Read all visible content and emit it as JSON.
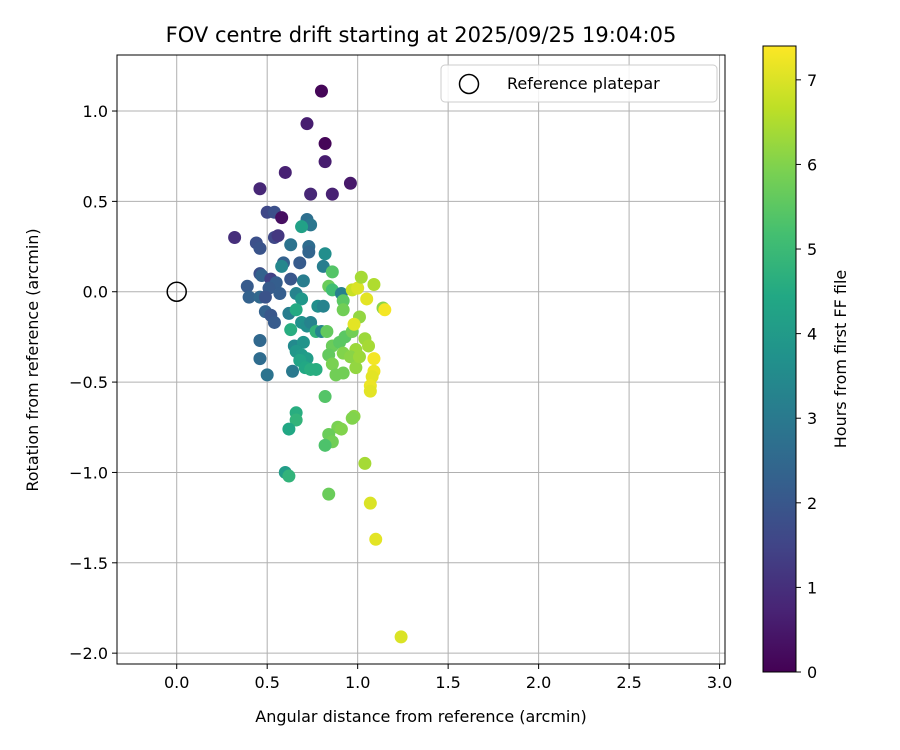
{
  "chart_data": {
    "type": "scatter",
    "title": "FOV centre drift starting at 2025/09/25 19:04:05",
    "xlabel": "Angular distance from reference (arcmin)",
    "ylabel": "Rotation from reference (arcmin)",
    "xlim": [
      -0.33,
      3.03
    ],
    "ylim": [
      -2.06,
      1.31
    ],
    "xticks": [
      0.0,
      0.5,
      1.0,
      1.5,
      2.0,
      2.5,
      3.0
    ],
    "xtick_labels": [
      "0.0",
      "0.5",
      "1.0",
      "1.5",
      "2.0",
      "2.5",
      "3.0"
    ],
    "yticks": [
      1.0,
      0.5,
      0.0,
      -0.5,
      -1.0,
      -1.5,
      -2.0
    ],
    "ytick_labels": [
      "1.0",
      "0.5",
      "0.0",
      "−0.5",
      "−1.0",
      "−1.5",
      "−2.0"
    ],
    "grid": true,
    "legend": {
      "placement": "top-right",
      "entries": [
        "Reference platepar"
      ]
    },
    "reference_point": {
      "x": 0.0,
      "y": 0.0,
      "label": "Reference platepar"
    },
    "colorbar": {
      "label": "Hours from first FF file",
      "range": [
        0,
        7.4
      ],
      "ticks": [
        0,
        1,
        2,
        3,
        4,
        5,
        6,
        7
      ],
      "tick_labels": [
        "0",
        "1",
        "2",
        "3",
        "4",
        "5",
        "6",
        "7"
      ],
      "colormap": "viridis"
    },
    "points": [
      {
        "x": 0.8,
        "y": 1.11,
        "h": 0.1
      },
      {
        "x": 0.72,
        "y": 0.93,
        "h": 0.6
      },
      {
        "x": 0.82,
        "y": 0.82,
        "h": 0.1
      },
      {
        "x": 0.82,
        "y": 0.72,
        "h": 0.6
      },
      {
        "x": 0.6,
        "y": 0.66,
        "h": 0.7
      },
      {
        "x": 0.96,
        "y": 0.6,
        "h": 0.5
      },
      {
        "x": 0.46,
        "y": 0.57,
        "h": 0.8
      },
      {
        "x": 0.74,
        "y": 0.54,
        "h": 0.8
      },
      {
        "x": 0.86,
        "y": 0.54,
        "h": 0.7
      },
      {
        "x": 0.5,
        "y": 0.44,
        "h": 1.6
      },
      {
        "x": 0.54,
        "y": 0.44,
        "h": 1.8
      },
      {
        "x": 0.58,
        "y": 0.41,
        "h": 0.3
      },
      {
        "x": 0.72,
        "y": 0.4,
        "h": 2.7
      },
      {
        "x": 0.74,
        "y": 0.37,
        "h": 2.9
      },
      {
        "x": 0.69,
        "y": 0.36,
        "h": 4.2
      },
      {
        "x": 0.32,
        "y": 0.3,
        "h": 1.0
      },
      {
        "x": 0.54,
        "y": 0.3,
        "h": 1.6
      },
      {
        "x": 0.56,
        "y": 0.31,
        "h": 1.2
      },
      {
        "x": 0.44,
        "y": 0.27,
        "h": 1.8
      },
      {
        "x": 0.46,
        "y": 0.24,
        "h": 1.9
      },
      {
        "x": 0.63,
        "y": 0.26,
        "h": 2.8
      },
      {
        "x": 0.73,
        "y": 0.25,
        "h": 2.6
      },
      {
        "x": 0.73,
        "y": 0.22,
        "h": 2.4
      },
      {
        "x": 0.82,
        "y": 0.21,
        "h": 3.6
      },
      {
        "x": 0.59,
        "y": 0.16,
        "h": 2.3
      },
      {
        "x": 0.58,
        "y": 0.14,
        "h": 3.4
      },
      {
        "x": 0.68,
        "y": 0.16,
        "h": 2.1
      },
      {
        "x": 0.81,
        "y": 0.14,
        "h": 3.1
      },
      {
        "x": 0.86,
        "y": 0.11,
        "h": 5.4
      },
      {
        "x": 0.46,
        "y": 0.1,
        "h": 1.8
      },
      {
        "x": 0.47,
        "y": 0.09,
        "h": 2.3
      },
      {
        "x": 0.52,
        "y": 0.07,
        "h": 1.4
      },
      {
        "x": 0.55,
        "y": 0.05,
        "h": 2.2
      },
      {
        "x": 0.63,
        "y": 0.07,
        "h": 2.0
      },
      {
        "x": 0.7,
        "y": 0.06,
        "h": 3.1
      },
      {
        "x": 0.39,
        "y": 0.03,
        "h": 2.1
      },
      {
        "x": 0.51,
        "y": 0.02,
        "h": 2.1
      },
      {
        "x": 0.84,
        "y": 0.03,
        "h": 5.7
      },
      {
        "x": 0.86,
        "y": 0.01,
        "h": 5.1
      },
      {
        "x": 0.91,
        "y": -0.01,
        "h": 3.2
      },
      {
        "x": 0.97,
        "y": 0.01,
        "h": 6.8
      },
      {
        "x": 1.0,
        "y": 0.02,
        "h": 7.0
      },
      {
        "x": 1.02,
        "y": 0.08,
        "h": 6.4
      },
      {
        "x": 1.09,
        "y": 0.04,
        "h": 6.5
      },
      {
        "x": 1.05,
        "y": -0.04,
        "h": 7.1
      },
      {
        "x": 0.4,
        "y": -0.03,
        "h": 2.3
      },
      {
        "x": 0.46,
        "y": -0.03,
        "h": 2.5
      },
      {
        "x": 0.49,
        "y": -0.03,
        "h": 1.9
      },
      {
        "x": 0.57,
        "y": -0.01,
        "h": 2.2
      },
      {
        "x": 0.66,
        "y": -0.01,
        "h": 3.3
      },
      {
        "x": 0.69,
        "y": -0.04,
        "h": 3.9
      },
      {
        "x": 0.78,
        "y": -0.08,
        "h": 3.6
      },
      {
        "x": 0.81,
        "y": -0.08,
        "h": 3.3
      },
      {
        "x": 0.92,
        "y": -0.05,
        "h": 5.5
      },
      {
        "x": 0.92,
        "y": -0.1,
        "h": 5.8
      },
      {
        "x": 0.49,
        "y": -0.11,
        "h": 2.3
      },
      {
        "x": 0.52,
        "y": -0.13,
        "h": 2.0
      },
      {
        "x": 0.54,
        "y": -0.17,
        "h": 2.1
      },
      {
        "x": 0.62,
        "y": -0.12,
        "h": 3.1
      },
      {
        "x": 0.66,
        "y": -0.1,
        "h": 4.5
      },
      {
        "x": 0.69,
        "y": -0.17,
        "h": 3.7
      },
      {
        "x": 0.72,
        "y": -0.19,
        "h": 3.6
      },
      {
        "x": 0.74,
        "y": -0.17,
        "h": 3.3
      },
      {
        "x": 0.77,
        "y": -0.22,
        "h": 4.8
      },
      {
        "x": 0.8,
        "y": -0.22,
        "h": 3.4
      },
      {
        "x": 0.83,
        "y": -0.22,
        "h": 5.6
      },
      {
        "x": 0.86,
        "y": -0.3,
        "h": 5.7
      },
      {
        "x": 0.9,
        "y": -0.28,
        "h": 5.5
      },
      {
        "x": 0.93,
        "y": -0.25,
        "h": 5.5
      },
      {
        "x": 0.97,
        "y": -0.22,
        "h": 5.8
      },
      {
        "x": 1.01,
        "y": -0.14,
        "h": 6.2
      },
      {
        "x": 1.04,
        "y": -0.26,
        "h": 6.3
      },
      {
        "x": 1.06,
        "y": -0.3,
        "h": 6.4
      },
      {
        "x": 0.99,
        "y": -0.32,
        "h": 6.3
      },
      {
        "x": 0.98,
        "y": -0.18,
        "h": 7.1
      },
      {
        "x": 1.14,
        "y": -0.09,
        "h": 6.1
      },
      {
        "x": 1.15,
        "y": -0.1,
        "h": 7.3
      },
      {
        "x": 0.63,
        "y": -0.21,
        "h": 4.6
      },
      {
        "x": 0.65,
        "y": -0.3,
        "h": 3.5
      },
      {
        "x": 0.7,
        "y": -0.28,
        "h": 3.8
      },
      {
        "x": 0.66,
        "y": -0.33,
        "h": 3.9
      },
      {
        "x": 0.69,
        "y": -0.35,
        "h": 4.0
      },
      {
        "x": 0.72,
        "y": -0.37,
        "h": 4.1
      },
      {
        "x": 0.68,
        "y": -0.38,
        "h": 4.3
      },
      {
        "x": 0.71,
        "y": -0.42,
        "h": 4.4
      },
      {
        "x": 0.74,
        "y": -0.43,
        "h": 4.6
      },
      {
        "x": 0.77,
        "y": -0.43,
        "h": 4.6
      },
      {
        "x": 0.84,
        "y": -0.35,
        "h": 5.6
      },
      {
        "x": 0.86,
        "y": -0.4,
        "h": 5.9
      },
      {
        "x": 0.88,
        "y": -0.46,
        "h": 5.8
      },
      {
        "x": 0.92,
        "y": -0.45,
        "h": 5.8
      },
      {
        "x": 0.92,
        "y": -0.34,
        "h": 6.0
      },
      {
        "x": 0.96,
        "y": -0.36,
        "h": 6.1
      },
      {
        "x": 0.99,
        "y": -0.42,
        "h": 6.2
      },
      {
        "x": 1.01,
        "y": -0.36,
        "h": 6.3
      },
      {
        "x": 0.46,
        "y": -0.27,
        "h": 2.5
      },
      {
        "x": 0.46,
        "y": -0.37,
        "h": 2.6
      },
      {
        "x": 0.5,
        "y": -0.46,
        "h": 2.8
      },
      {
        "x": 0.64,
        "y": -0.44,
        "h": 3.0
      },
      {
        "x": 1.09,
        "y": -0.37,
        "h": 7.3
      },
      {
        "x": 1.09,
        "y": -0.44,
        "h": 7.2
      },
      {
        "x": 1.08,
        "y": -0.47,
        "h": 7.1
      },
      {
        "x": 1.07,
        "y": -0.52,
        "h": 7.2
      },
      {
        "x": 1.07,
        "y": -0.55,
        "h": 7.1
      },
      {
        "x": 0.82,
        "y": -0.58,
        "h": 5.4
      },
      {
        "x": 0.66,
        "y": -0.67,
        "h": 4.6
      },
      {
        "x": 0.66,
        "y": -0.71,
        "h": 4.8
      },
      {
        "x": 0.62,
        "y": -0.76,
        "h": 4.4
      },
      {
        "x": 0.98,
        "y": -0.69,
        "h": 6.1
      },
      {
        "x": 0.97,
        "y": -0.7,
        "h": 6.0
      },
      {
        "x": 0.89,
        "y": -0.75,
        "h": 5.9
      },
      {
        "x": 0.91,
        "y": -0.76,
        "h": 6.0
      },
      {
        "x": 0.84,
        "y": -0.79,
        "h": 5.7
      },
      {
        "x": 0.86,
        "y": -0.83,
        "h": 5.8
      },
      {
        "x": 0.82,
        "y": -0.85,
        "h": 5.3
      },
      {
        "x": 1.04,
        "y": -0.95,
        "h": 6.4
      },
      {
        "x": 0.6,
        "y": -1.0,
        "h": 4.1
      },
      {
        "x": 0.62,
        "y": -1.02,
        "h": 4.8
      },
      {
        "x": 0.84,
        "y": -1.12,
        "h": 5.7
      },
      {
        "x": 1.07,
        "y": -1.17,
        "h": 7.0
      },
      {
        "x": 1.1,
        "y": -1.37,
        "h": 7.1
      },
      {
        "x": 1.24,
        "y": -1.91,
        "h": 7.0
      }
    ]
  }
}
